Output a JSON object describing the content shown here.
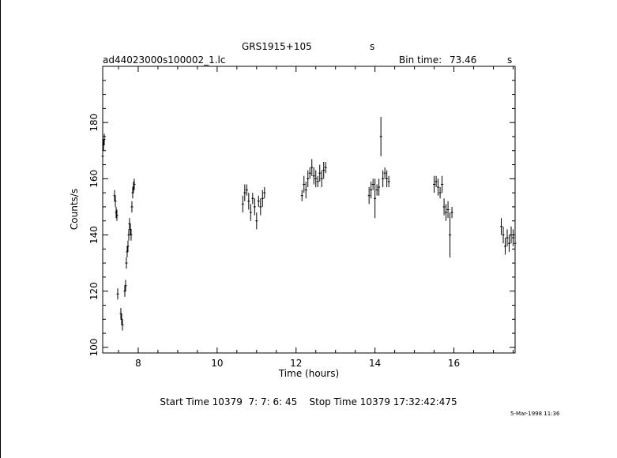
{
  "header": {
    "target": "GRS1915+105",
    "target_unit": "s",
    "file": "ad44023000s100002_1.lc",
    "bin_label": "Bin time:",
    "bin_value": "73.46",
    "bin_unit": "s"
  },
  "footer": {
    "start_label": "Start Time",
    "start_value": "10379  7: 7: 6: 45",
    "stop_label": "Stop Time",
    "stop_value": "10379 17:32:42:475"
  },
  "datestamp": "5-Mar-1998 11:36",
  "chart_data": {
    "type": "scatter",
    "title": "",
    "xlabel": "Time (hours)",
    "ylabel": "Counts/s",
    "xlim": [
      7.1,
      17.55
    ],
    "ylim": [
      98,
      200
    ],
    "xticks": [
      8,
      10,
      12,
      14,
      16
    ],
    "yticks": [
      100,
      120,
      140,
      160,
      180
    ],
    "series": [
      {
        "x": [
          7.1,
          7.12,
          7.14,
          7.4,
          7.42,
          7.44,
          7.46,
          7.48,
          7.56,
          7.58,
          7.6,
          7.66,
          7.68,
          7.7,
          7.72,
          7.74,
          7.76,
          7.78,
          7.8,
          7.82,
          7.84,
          7.86,
          7.88,
          7.9,
          10.65,
          10.7,
          10.75,
          10.8,
          10.85,
          10.9,
          10.95,
          11.0,
          11.05,
          11.1,
          11.15,
          11.2,
          12.15,
          12.2,
          12.25,
          12.3,
          12.35,
          12.4,
          12.45,
          12.5,
          12.55,
          12.6,
          12.65,
          12.7,
          12.75,
          13.85,
          13.9,
          13.95,
          14.0,
          14.05,
          14.1,
          14.15,
          14.2,
          14.25,
          14.3,
          14.35,
          15.5,
          15.55,
          15.6,
          15.65,
          15.7,
          15.75,
          15.8,
          15.85,
          15.9,
          15.95,
          17.2,
          17.25,
          17.3,
          17.35,
          17.4,
          17.45,
          17.5,
          17.55
        ],
        "y": [
          168,
          172,
          174,
          154,
          152,
          148,
          147,
          119,
          112,
          110,
          108,
          120,
          122,
          130,
          134,
          136,
          140,
          144,
          142,
          140,
          150,
          155,
          157,
          158,
          151,
          155,
          156,
          152,
          148,
          153,
          150,
          145,
          152,
          150,
          153,
          155,
          154,
          158,
          156,
          160,
          162,
          164,
          161,
          160,
          159,
          162,
          160,
          163,
          164,
          154,
          156,
          158,
          153,
          156,
          157,
          175,
          160,
          162,
          160,
          159,
          158,
          159,
          157,
          155,
          158,
          150,
          148,
          149,
          140,
          148,
          143,
          140,
          136,
          139,
          137,
          140,
          139,
          137
        ],
        "err": [
          2,
          2,
          2,
          2,
          2,
          2,
          2,
          2,
          2,
          2,
          2,
          2,
          2,
          2,
          2,
          2,
          2,
          2,
          2,
          2,
          2,
          2,
          2,
          2,
          3,
          3,
          2,
          3,
          3,
          2,
          3,
          3,
          2,
          3,
          3,
          2,
          2,
          3,
          3,
          3,
          2,
          3,
          3,
          3,
          2,
          3,
          3,
          3,
          2,
          3,
          3,
          2,
          7,
          2,
          3,
          7,
          3,
          2,
          3,
          2,
          3,
          2,
          3,
          2,
          3,
          3,
          3,
          3,
          8,
          2,
          3,
          3,
          3,
          3,
          3,
          3,
          3,
          3
        ]
      }
    ]
  }
}
